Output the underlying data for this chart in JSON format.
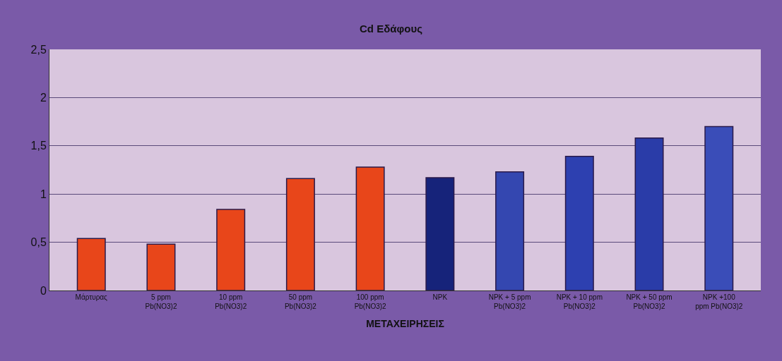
{
  "chart_data": {
    "type": "bar",
    "title": "Cd Εδάφους",
    "xlabel": "ΜΕΤΑΧΕΙΡΗΣΕΙΣ",
    "categories": [
      "Μάρτυρας",
      "5 ppm\nPb(NO3)2",
      "10 ppm\nPb(NO3)2",
      "50 ppm\nPb(NO3)2",
      "100 ppm\nPb(NO3)2",
      "NPK",
      "NPK + 5 ppm\nPb(NO3)2",
      "NPK + 10 ppm\nPb(NO3)2",
      "NPK + 50 ppm\nPb(NO3)2",
      "NPK +100\nppm Pb(NO3)2"
    ],
    "values": [
      0.54,
      0.48,
      0.84,
      1.16,
      1.28,
      1.17,
      1.23,
      1.39,
      1.58,
      1.7
    ],
    "colors": [
      "#e8461a",
      "#e8461a",
      "#e8461a",
      "#e8461a",
      "#e8461a",
      "#16237a",
      "#3447b0",
      "#2d40b0",
      "#2a3ca8",
      "#3a4db8"
    ],
    "ylim": [
      0,
      2.5
    ],
    "yticks": [
      {
        "value": 0,
        "label": "0"
      },
      {
        "value": 0.5,
        "label": "0,5"
      },
      {
        "value": 1,
        "label": "1"
      },
      {
        "value": 1.5,
        "label": "1,5"
      },
      {
        "value": 2,
        "label": "2"
      },
      {
        "value": 2.5,
        "label": "2,5"
      }
    ],
    "grid": "y",
    "legend": false
  }
}
